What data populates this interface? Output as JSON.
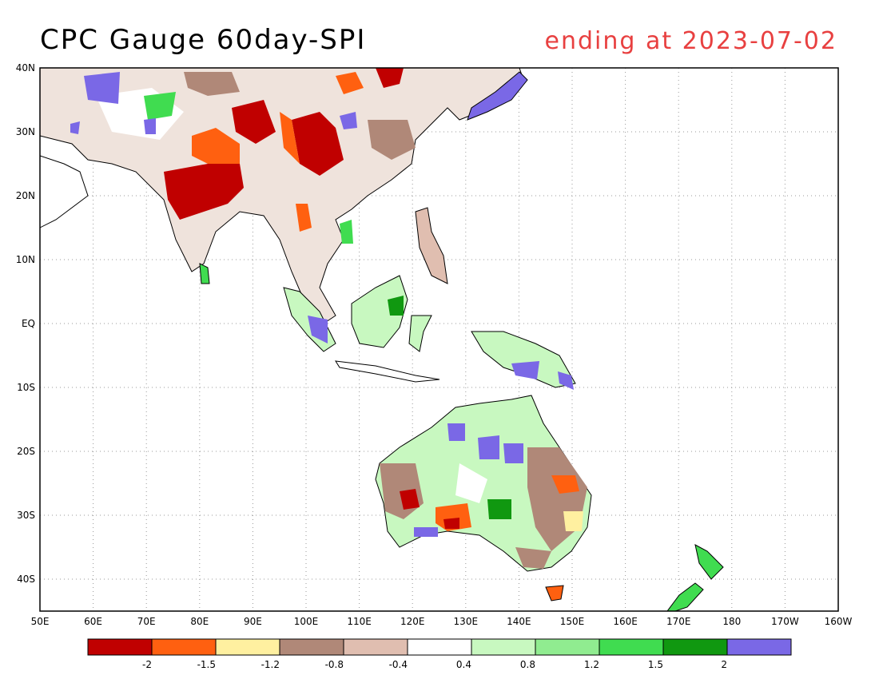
{
  "title": "CPC Gauge 60day-SPI",
  "subtitle": "ending at 2023-07-02",
  "map": {
    "lat_ticks": [
      "40N",
      "30N",
      "20N",
      "10N",
      "EQ",
      "10S",
      "20S",
      "30S",
      "40S"
    ],
    "lon_ticks": [
      "50E",
      "60E",
      "70E",
      "80E",
      "90E",
      "100E",
      "110E",
      "120E",
      "130E",
      "140E",
      "150E",
      "160E",
      "170E",
      "180",
      "170W",
      "160W"
    ],
    "lon_range": [
      50,
      200
    ],
    "lat_range": [
      -45,
      40
    ]
  },
  "legend": {
    "colors": [
      "#c00000",
      "#ff6010",
      "#fff0a0",
      "#b08878",
      "#e0beb0",
      "#ffffff",
      "#c8f8c0",
      "#90ec90",
      "#40dc50",
      "#109810",
      "#7a68e6"
    ],
    "labels": [
      "-2",
      "-1.5",
      "-1.2",
      "-0.8",
      "-0.4",
      "0.4",
      "0.8",
      "1.2",
      "1.5",
      "2"
    ]
  }
}
